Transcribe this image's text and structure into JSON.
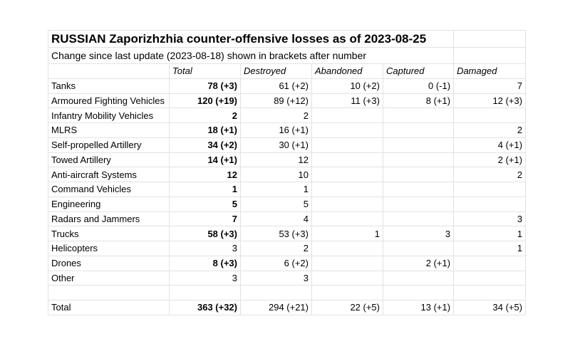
{
  "title": "RUSSIAN Zaporizhzhia counter-offensive losses as of 2023-08-25",
  "subtitle": "Change since last update (2023-08-18) shown in brackets after number",
  "columns": [
    "",
    "Total",
    "Destroyed",
    "Abandoned",
    "Captured",
    "Damaged"
  ],
  "rows": [
    {
      "label": "Tanks",
      "total": "78 (+3)",
      "destroyed": "61 (+2)",
      "abandoned": "10 (+2)",
      "captured": "0 (-1)",
      "damaged": "7",
      "total_bold": true
    },
    {
      "label": "Armoured Fighting Vehicles",
      "total": "120 (+19)",
      "destroyed": "89 (+12)",
      "abandoned": "11 (+3)",
      "captured": "8 (+1)",
      "damaged": "12 (+3)",
      "total_bold": true
    },
    {
      "label": "Infantry Mobility Vehicles",
      "total": "2",
      "destroyed": "2",
      "abandoned": "",
      "captured": "",
      "damaged": "",
      "total_bold": true
    },
    {
      "label": "MLRS",
      "total": "18 (+1)",
      "destroyed": "16 (+1)",
      "abandoned": "",
      "captured": "",
      "damaged": "2",
      "total_bold": true
    },
    {
      "label": "Self-propelled Artillery",
      "total": "34 (+2)",
      "destroyed": "30 (+1)",
      "abandoned": "",
      "captured": "",
      "damaged": "4 (+1)",
      "total_bold": true
    },
    {
      "label": "Towed Artillery",
      "total": "14 (+1)",
      "destroyed": "12",
      "abandoned": "",
      "captured": "",
      "damaged": "2 (+1)",
      "total_bold": true
    },
    {
      "label": "Anti-aircraft Systems",
      "total": "12",
      "destroyed": "10",
      "abandoned": "",
      "captured": "",
      "damaged": "2",
      "total_bold": true
    },
    {
      "label": "Command Vehicles",
      "total": "1",
      "destroyed": "1",
      "abandoned": "",
      "captured": "",
      "damaged": "",
      "total_bold": true
    },
    {
      "label": "Engineering",
      "total": "5",
      "destroyed": "5",
      "abandoned": "",
      "captured": "",
      "damaged": "",
      "total_bold": true
    },
    {
      "label": "Radars and Jammers",
      "total": "7",
      "destroyed": "4",
      "abandoned": "",
      "captured": "",
      "damaged": "3",
      "total_bold": true
    },
    {
      "label": "Trucks",
      "total": "58 (+3)",
      "destroyed": "53 (+3)",
      "abandoned": "1",
      "captured": "3",
      "damaged": "1",
      "total_bold": true
    },
    {
      "label": "Helicopters",
      "total": "3",
      "destroyed": "2",
      "abandoned": "",
      "captured": "",
      "damaged": "1",
      "total_bold": false
    },
    {
      "label": "Drones",
      "total": "8 (+3)",
      "destroyed": "6 (+2)",
      "abandoned": "",
      "captured": "2 (+1)",
      "damaged": "",
      "total_bold": true
    },
    {
      "label": "Other",
      "total": "3",
      "destroyed": "3",
      "abandoned": "",
      "captured": "",
      "damaged": "",
      "total_bold": false
    },
    {
      "label": "",
      "total": "",
      "destroyed": "",
      "abandoned": "",
      "captured": "",
      "damaged": "",
      "total_bold": false
    },
    {
      "label": "Total",
      "total": "363 (+32)",
      "destroyed": "294 (+21)",
      "abandoned": "22 (+5)",
      "captured": "13 (+1)",
      "damaged": "34 (+5)",
      "total_bold": true
    }
  ]
}
